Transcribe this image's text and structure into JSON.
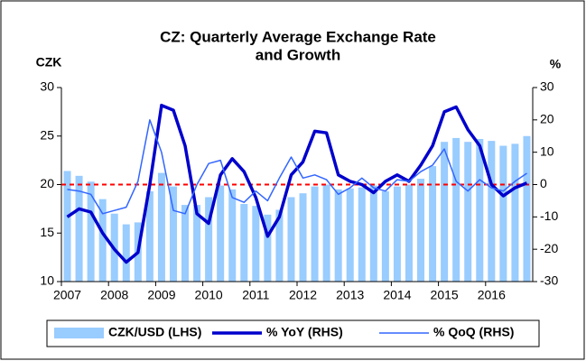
{
  "chart_data": {
    "type": "bar_line",
    "title": [
      "CZ: Quarterly Average Exchange Rate",
      "and Growth"
    ],
    "ylabel": "CZK",
    "y2label": "%",
    "categories": [
      "2007",
      null,
      null,
      null,
      "2008",
      null,
      null,
      null,
      "2009",
      null,
      null,
      null,
      "2010",
      null,
      null,
      null,
      "2011",
      null,
      null,
      null,
      "2012",
      null,
      null,
      null,
      "2013",
      null,
      null,
      null,
      "2014",
      null,
      null,
      null,
      "2015",
      null,
      null,
      null,
      "2016",
      null,
      null,
      null
    ],
    "ylim": [
      10,
      30
    ],
    "yticks": [
      10,
      15,
      20,
      25,
      30
    ],
    "y2lim": [
      -30,
      30
    ],
    "y2ticks": [
      -30,
      -20,
      -10,
      0,
      10,
      20,
      30
    ],
    "series": [
      {
        "name": "CZK/USD (LHS)",
        "type": "bar",
        "color": "#99ccff",
        "values": [
          21.4,
          20.9,
          20.3,
          18.5,
          17.0,
          15.9,
          16.1,
          19.3,
          21.2,
          19.8,
          17.9,
          17.9,
          18.7,
          19.9,
          19.5,
          18.0,
          17.8,
          16.9,
          17.4,
          18.7,
          19.1,
          19.8,
          20.0,
          19.5,
          19.6,
          19.7,
          19.9,
          19.3,
          19.8,
          20.0,
          20.6,
          21.9,
          24.4,
          24.8,
          24.4,
          24.7,
          24.5,
          24.0,
          24.2,
          25.0
        ]
      },
      {
        "name": "% YoY (RHS)",
        "type": "line",
        "axis": "y2",
        "color": "#0000cc",
        "width": 3.5,
        "values": [
          -10,
          -7.5,
          -8.5,
          -15,
          -20,
          -24,
          -21,
          0,
          24.5,
          23,
          12,
          -9,
          -12,
          3,
          8,
          4,
          -4,
          -16,
          -10,
          3,
          7,
          16.5,
          16,
          3,
          1,
          0,
          -2.5,
          1,
          3,
          1,
          6,
          12,
          22.5,
          24,
          17,
          12,
          0,
          -3.5,
          -1,
          0.5
        ]
      },
      {
        "name": "% QoQ (RHS)",
        "type": "line",
        "axis": "y2",
        "color": "#3366ff",
        "width": 1.5,
        "values": [
          -1.5,
          -2,
          -3,
          -9,
          -8,
          -7,
          1,
          20,
          10,
          -8,
          -9,
          0,
          6.5,
          7.5,
          -4,
          -5.5,
          -2,
          -5,
          2,
          8.5,
          2,
          3,
          1.5,
          -3,
          -1,
          2,
          -1,
          -2,
          1.5,
          1,
          4,
          6,
          11,
          1,
          -2,
          1.5,
          -1,
          -2,
          1,
          3.5
        ]
      }
    ],
    "reference_line": {
      "axis": "y2",
      "value": 0,
      "color": "#ff0000"
    },
    "legend": "bottom"
  }
}
